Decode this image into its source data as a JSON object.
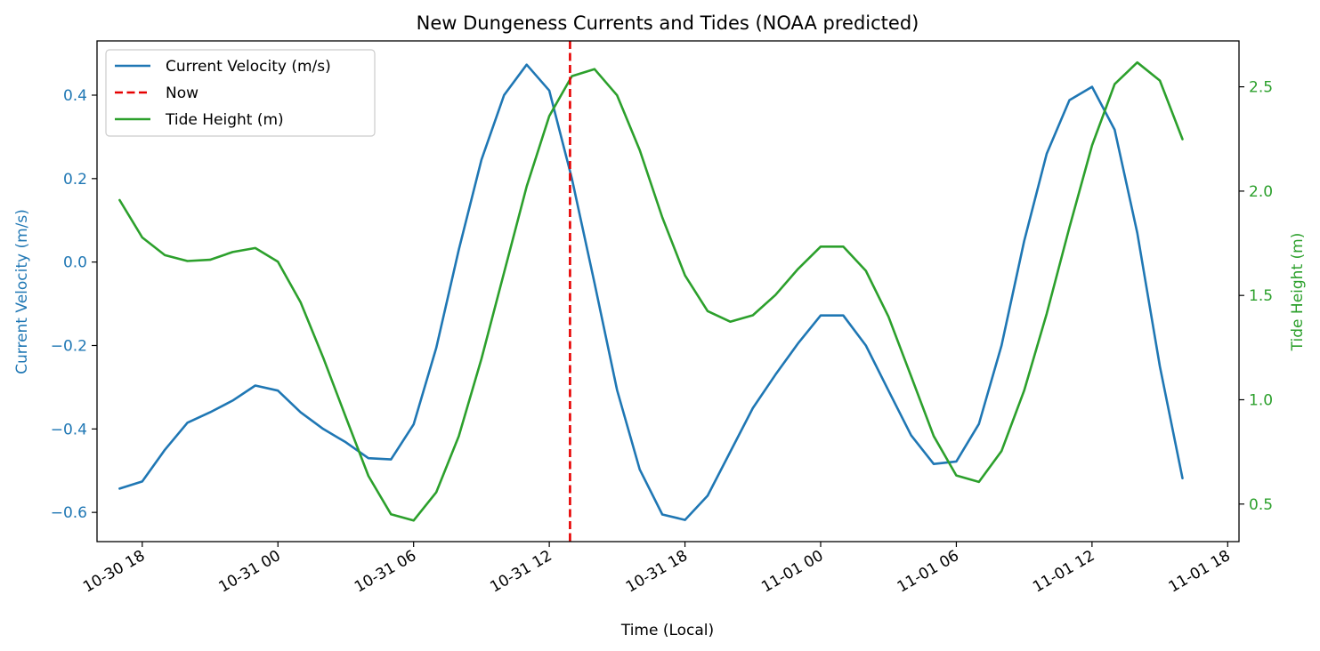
{
  "chart_data": {
    "type": "line",
    "title": "New Dungeness Currents and Tides (NOAA predicted)",
    "xlabel": "Time (Local)",
    "x_axis": {
      "start": "2024-10-30 16:00",
      "end": "2024-11-01 18:30",
      "ticks": [
        {
          "t": "2024-10-30 18:00",
          "label": "10-30 18"
        },
        {
          "t": "2024-10-31 00:00",
          "label": "10-31 00"
        },
        {
          "t": "2024-10-31 06:00",
          "label": "10-31 06"
        },
        {
          "t": "2024-10-31 12:00",
          "label": "10-31 12"
        },
        {
          "t": "2024-10-31 18:00",
          "label": "10-31 18"
        },
        {
          "t": "2024-11-01 00:00",
          "label": "11-01 00"
        },
        {
          "t": "2024-11-01 06:00",
          "label": "11-01 06"
        },
        {
          "t": "2024-11-01 12:00",
          "label": "11-01 12"
        },
        {
          "t": "2024-11-01 18:00",
          "label": "11-01 18"
        }
      ]
    },
    "y_left": {
      "label": "Current Velocity (m/s)",
      "range": [
        -0.67,
        0.53
      ],
      "ticks": [
        -0.6,
        -0.4,
        -0.2,
        0.0,
        0.2,
        0.4
      ],
      "tick_labels": [
        "−0.6",
        "−0.4",
        "−0.2",
        "0.0",
        "0.2",
        "0.4"
      ],
      "color": "#1f77b4"
    },
    "y_right": {
      "label": "Tide Height (m)",
      "range": [
        0.32,
        2.72
      ],
      "ticks": [
        0.5,
        1.0,
        1.5,
        2.0,
        2.5
      ],
      "tick_labels": [
        "0.5",
        "1.0",
        "1.5",
        "2.0",
        "2.5"
      ],
      "color": "#2ca02c"
    },
    "legend": {
      "placement": "top-left",
      "entries": [
        {
          "label": "Current Velocity (m/s)",
          "color": "#1f77b4",
          "style": "solid"
        },
        {
          "label": "Now",
          "color": "#e60000",
          "style": "dashed"
        },
        {
          "label": "Tide Height (m)",
          "color": "#2ca02c",
          "style": "solid"
        }
      ]
    },
    "now": "2024-10-31 12:55",
    "series": [
      {
        "name": "Current Velocity (m/s)",
        "axis": "left",
        "color": "#1f77b4",
        "x": [
          "2024-10-30 17:00",
          "2024-10-30 18:00",
          "2024-10-30 19:00",
          "2024-10-30 20:00",
          "2024-10-30 21:00",
          "2024-10-30 22:00",
          "2024-10-30 23:00",
          "2024-10-31 00:00",
          "2024-10-31 01:00",
          "2024-10-31 02:00",
          "2024-10-31 03:00",
          "2024-10-31 04:00",
          "2024-10-31 05:00",
          "2024-10-31 06:00",
          "2024-10-31 07:00",
          "2024-10-31 08:00",
          "2024-10-31 09:00",
          "2024-10-31 10:00",
          "2024-10-31 11:00",
          "2024-10-31 12:00",
          "2024-10-31 13:00",
          "2024-10-31 14:00",
          "2024-10-31 15:00",
          "2024-10-31 16:00",
          "2024-10-31 17:00",
          "2024-10-31 18:00",
          "2024-10-31 19:00",
          "2024-10-31 20:00",
          "2024-10-31 21:00",
          "2024-10-31 22:00",
          "2024-10-31 23:00",
          "2024-11-01 00:00",
          "2024-11-01 01:00",
          "2024-11-01 02:00",
          "2024-11-01 03:00",
          "2024-11-01 04:00",
          "2024-11-01 05:00",
          "2024-11-01 06:00",
          "2024-11-01 07:00",
          "2024-11-01 08:00",
          "2024-11-01 09:00",
          "2024-11-01 10:00",
          "2024-11-01 11:00",
          "2024-11-01 12:00",
          "2024-11-01 13:00",
          "2024-11-01 14:00",
          "2024-11-01 15:00",
          "2024-11-01 16:00"
        ],
        "values": [
          -0.543,
          -0.526,
          -0.45,
          -0.385,
          -0.36,
          -0.332,
          -0.296,
          -0.308,
          -0.36,
          -0.4,
          -0.432,
          -0.47,
          -0.473,
          -0.389,
          -0.206,
          0.03,
          0.245,
          0.4,
          0.473,
          0.411,
          0.2,
          -0.05,
          -0.307,
          -0.497,
          -0.605,
          -0.618,
          -0.56,
          -0.455,
          -0.35,
          -0.27,
          -0.195,
          -0.128,
          -0.128,
          -0.2,
          -0.308,
          -0.415,
          -0.484,
          -0.478,
          -0.388,
          -0.2,
          0.05,
          0.26,
          0.388,
          0.42,
          0.317,
          0.07,
          -0.25,
          -0.518
        ]
      },
      {
        "name": "Tide Height (m)",
        "axis": "right",
        "color": "#2ca02c",
        "x": [
          "2024-10-30 17:00",
          "2024-10-30 18:00",
          "2024-10-30 19:00",
          "2024-10-30 20:00",
          "2024-10-30 21:00",
          "2024-10-30 22:00",
          "2024-10-30 23:00",
          "2024-10-31 00:00",
          "2024-10-31 01:00",
          "2024-10-31 02:00",
          "2024-10-31 03:00",
          "2024-10-31 04:00",
          "2024-10-31 05:00",
          "2024-10-31 06:00",
          "2024-10-31 07:00",
          "2024-10-31 08:00",
          "2024-10-31 09:00",
          "2024-10-31 10:00",
          "2024-10-31 11:00",
          "2024-10-31 12:00",
          "2024-10-31 13:00",
          "2024-10-31 14:00",
          "2024-10-31 15:00",
          "2024-10-31 16:00",
          "2024-10-31 17:00",
          "2024-10-31 18:00",
          "2024-10-31 19:00",
          "2024-10-31 20:00",
          "2024-10-31 21:00",
          "2024-10-31 22:00",
          "2024-10-31 23:00",
          "2024-11-01 00:00",
          "2024-11-01 01:00",
          "2024-11-01 02:00",
          "2024-11-01 03:00",
          "2024-11-01 04:00",
          "2024-11-01 05:00",
          "2024-11-01 06:00",
          "2024-11-01 07:00",
          "2024-11-01 08:00",
          "2024-11-01 09:00",
          "2024-11-01 10:00",
          "2024-11-01 11:00",
          "2024-11-01 12:00",
          "2024-11-01 13:00",
          "2024-11-01 14:00",
          "2024-11-01 15:00",
          "2024-11-01 16:00"
        ],
        "values": [
          1.957,
          1.778,
          1.693,
          1.665,
          1.671,
          1.708,
          1.727,
          1.662,
          1.467,
          1.202,
          0.917,
          0.635,
          0.451,
          0.421,
          0.556,
          0.826,
          1.196,
          1.609,
          2.022,
          2.36,
          2.551,
          2.585,
          2.459,
          2.197,
          1.874,
          1.596,
          1.425,
          1.374,
          1.405,
          1.502,
          1.627,
          1.734,
          1.734,
          1.618,
          1.398,
          1.113,
          0.826,
          0.637,
          0.606,
          0.754,
          1.044,
          1.413,
          1.826,
          2.219,
          2.513,
          2.617,
          2.53,
          2.249
        ]
      }
    ]
  }
}
